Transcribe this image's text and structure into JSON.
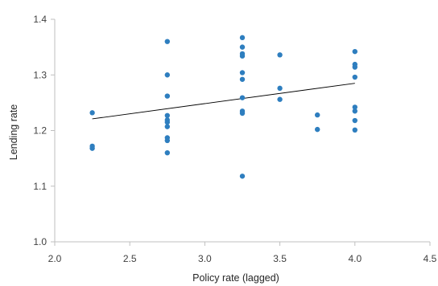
{
  "chart_data": {
    "type": "scatter",
    "title": "",
    "xlabel": "Policy rate (lagged)",
    "ylabel": "Lending rate",
    "xlim": [
      2.0,
      4.5
    ],
    "ylim": [
      1.0,
      1.4
    ],
    "xticks": [
      2.0,
      2.5,
      3.0,
      3.5,
      4.0,
      4.5
    ],
    "yticks": [
      1.0,
      1.1,
      1.2,
      1.3,
      1.4
    ],
    "xtick_labels": [
      "2.0",
      "2.5",
      "3.0",
      "3.5",
      "4.0",
      "4.5"
    ],
    "ytick_labels": [
      "1.0",
      "1.1",
      "1.2",
      "1.3",
      "1.4"
    ],
    "grid": false,
    "legend": "none",
    "point_color": "#2E7EBF",
    "trendline_color": "#000000",
    "trendline": {
      "x": [
        2.25,
        4.0
      ],
      "y": [
        1.221,
        1.285
      ]
    },
    "points": [
      {
        "x": 2.25,
        "y": 1.232
      },
      {
        "x": 2.25,
        "y": 1.172
      },
      {
        "x": 2.25,
        "y": 1.168
      },
      {
        "x": 2.75,
        "y": 1.36
      },
      {
        "x": 2.75,
        "y": 1.3
      },
      {
        "x": 2.75,
        "y": 1.262
      },
      {
        "x": 2.75,
        "y": 1.227
      },
      {
        "x": 2.75,
        "y": 1.219
      },
      {
        "x": 2.75,
        "y": 1.215
      },
      {
        "x": 2.75,
        "y": 1.207
      },
      {
        "x": 2.75,
        "y": 1.187
      },
      {
        "x": 2.75,
        "y": 1.182
      },
      {
        "x": 2.75,
        "y": 1.16
      },
      {
        "x": 3.25,
        "y": 1.367
      },
      {
        "x": 3.25,
        "y": 1.35
      },
      {
        "x": 3.25,
        "y": 1.338
      },
      {
        "x": 3.25,
        "y": 1.334
      },
      {
        "x": 3.25,
        "y": 1.304
      },
      {
        "x": 3.25,
        "y": 1.292
      },
      {
        "x": 3.25,
        "y": 1.259
      },
      {
        "x": 3.25,
        "y": 1.235
      },
      {
        "x": 3.25,
        "y": 1.231
      },
      {
        "x": 3.25,
        "y": 1.118
      },
      {
        "x": 3.5,
        "y": 1.336
      },
      {
        "x": 3.5,
        "y": 1.276
      },
      {
        "x": 3.5,
        "y": 1.256
      },
      {
        "x": 3.75,
        "y": 1.228
      },
      {
        "x": 3.75,
        "y": 1.202
      },
      {
        "x": 4.0,
        "y": 1.342
      },
      {
        "x": 4.0,
        "y": 1.319
      },
      {
        "x": 4.0,
        "y": 1.314
      },
      {
        "x": 4.0,
        "y": 1.296
      },
      {
        "x": 4.0,
        "y": 1.242
      },
      {
        "x": 4.0,
        "y": 1.235
      },
      {
        "x": 4.0,
        "y": 1.218
      },
      {
        "x": 4.0,
        "y": 1.201
      }
    ]
  }
}
